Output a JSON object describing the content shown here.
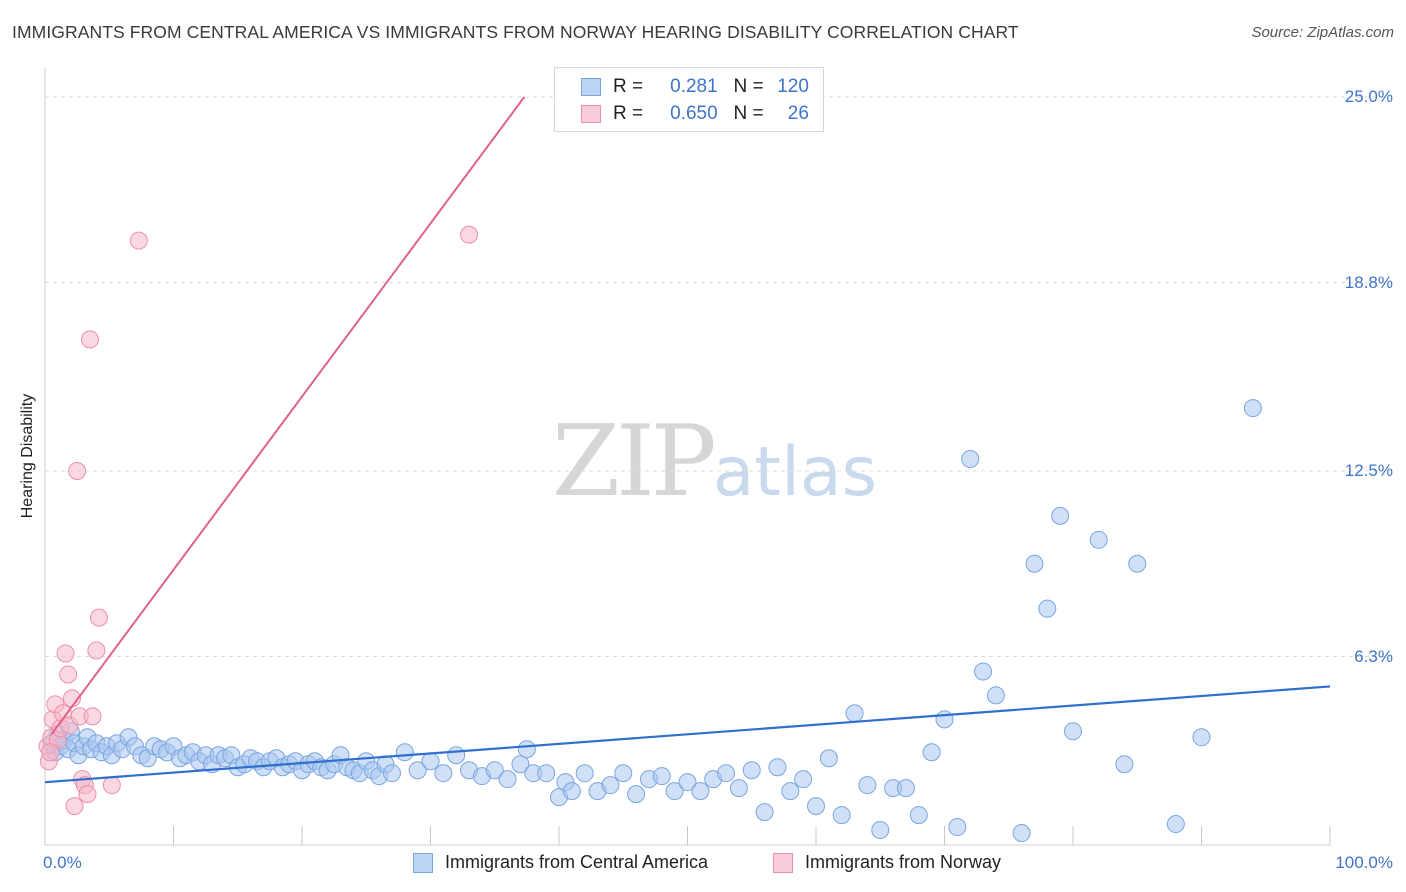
{
  "header": {
    "title": "IMMIGRANTS FROM CENTRAL AMERICA VS IMMIGRANTS FROM NORWAY HEARING DISABILITY CORRELATION CHART",
    "source": "Source: ZipAtlas.com"
  },
  "watermark": {
    "zip": "ZIP",
    "atlas": "atlas"
  },
  "legend": {
    "r_label": "R =",
    "n_label": "N =",
    "rows": [
      {
        "r": "0.281",
        "n": "120"
      },
      {
        "r": "0.650",
        "n": " 26"
      }
    ]
  },
  "colors": {
    "blue_fill": "#a9c7ef",
    "blue_stroke": "#7aa6e0",
    "blue_line": "#2e6fcf",
    "pink_fill": "#f6b8c9",
    "pink_stroke": "#ec8fab",
    "pink_line": "#e0628c",
    "grid": "#dcdcdc",
    "tick_text": "#3f74c8"
  },
  "chart_data": {
    "type": "scatter",
    "title": "IMMIGRANTS FROM CENTRAL AMERICA VS IMMIGRANTS FROM NORWAY HEARING DISABILITY CORRELATION CHART",
    "xlabel": "",
    "ylabel": "Hearing Disability",
    "xlim": [
      0,
      100
    ],
    "ylim": [
      0,
      25
    ],
    "x_tick_labels": [
      "0.0%",
      "100.0%"
    ],
    "y_ticks": [
      {
        "value": 6.3,
        "label": "6.3%"
      },
      {
        "value": 12.5,
        "label": "12.5%"
      },
      {
        "value": 18.8,
        "label": "18.8%"
      },
      {
        "value": 25.0,
        "label": "25.0%"
      }
    ],
    "grid": true,
    "series": [
      {
        "name": "Immigrants from Central America",
        "color": "#a9c7ef",
        "r": 0.281,
        "n": 120,
        "trend": {
          "x": [
            0,
            100
          ],
          "y": [
            2.1,
            5.3
          ]
        },
        "points": [
          [
            0.5,
            3.4
          ],
          [
            0.8,
            3.1
          ],
          [
            1.0,
            3.7
          ],
          [
            1.2,
            3.3
          ],
          [
            1.5,
            3.5
          ],
          [
            1.8,
            3.2
          ],
          [
            2.0,
            3.8
          ],
          [
            2.3,
            3.4
          ],
          [
            2.6,
            3.0
          ],
          [
            3.0,
            3.3
          ],
          [
            3.3,
            3.6
          ],
          [
            3.6,
            3.2
          ],
          [
            4.0,
            3.4
          ],
          [
            4.4,
            3.1
          ],
          [
            4.8,
            3.3
          ],
          [
            5.2,
            3.0
          ],
          [
            5.6,
            3.4
          ],
          [
            6.0,
            3.2
          ],
          [
            6.5,
            3.6
          ],
          [
            7.0,
            3.3
          ],
          [
            7.5,
            3.0
          ],
          [
            8.0,
            2.9
          ],
          [
            8.5,
            3.3
          ],
          [
            9.0,
            3.2
          ],
          [
            9.5,
            3.1
          ],
          [
            10.0,
            3.3
          ],
          [
            10.5,
            2.9
          ],
          [
            11.0,
            3.0
          ],
          [
            11.5,
            3.1
          ],
          [
            12.0,
            2.8
          ],
          [
            12.5,
            3.0
          ],
          [
            13.0,
            2.7
          ],
          [
            13.5,
            3.0
          ],
          [
            14.0,
            2.9
          ],
          [
            14.5,
            3.0
          ],
          [
            15.0,
            2.6
          ],
          [
            15.5,
            2.7
          ],
          [
            16.0,
            2.9
          ],
          [
            16.5,
            2.8
          ],
          [
            17.0,
            2.6
          ],
          [
            17.5,
            2.8
          ],
          [
            18.0,
            2.9
          ],
          [
            18.5,
            2.6
          ],
          [
            19.0,
            2.7
          ],
          [
            19.5,
            2.8
          ],
          [
            20.0,
            2.5
          ],
          [
            20.5,
            2.7
          ],
          [
            21.0,
            2.8
          ],
          [
            21.5,
            2.6
          ],
          [
            22.0,
            2.5
          ],
          [
            22.5,
            2.7
          ],
          [
            23.0,
            3.0
          ],
          [
            23.5,
            2.6
          ],
          [
            24.0,
            2.5
          ],
          [
            24.5,
            2.4
          ],
          [
            25.0,
            2.8
          ],
          [
            25.5,
            2.5
          ],
          [
            26.0,
            2.3
          ],
          [
            26.5,
            2.7
          ],
          [
            27.0,
            2.4
          ],
          [
            28.0,
            3.1
          ],
          [
            29.0,
            2.5
          ],
          [
            30.0,
            2.8
          ],
          [
            31.0,
            2.4
          ],
          [
            32.0,
            3.0
          ],
          [
            33.0,
            2.5
          ],
          [
            34.0,
            2.3
          ],
          [
            35.0,
            2.5
          ],
          [
            36.0,
            2.2
          ],
          [
            37.0,
            2.7
          ],
          [
            37.5,
            3.2
          ],
          [
            38.0,
            2.4
          ],
          [
            39.0,
            2.4
          ],
          [
            40.0,
            1.6
          ],
          [
            40.5,
            2.1
          ],
          [
            41.0,
            1.8
          ],
          [
            42.0,
            2.4
          ],
          [
            43.0,
            1.8
          ],
          [
            44.0,
            2.0
          ],
          [
            45.0,
            2.4
          ],
          [
            46.0,
            1.7
          ],
          [
            47.0,
            2.2
          ],
          [
            48.0,
            2.3
          ],
          [
            49.0,
            1.8
          ],
          [
            50.0,
            2.1
          ],
          [
            51.0,
            1.8
          ],
          [
            52.0,
            2.2
          ],
          [
            53.0,
            2.4
          ],
          [
            54.0,
            1.9
          ],
          [
            55.0,
            2.5
          ],
          [
            56.0,
            1.1
          ],
          [
            57.0,
            2.6
          ],
          [
            58.0,
            1.8
          ],
          [
            59.0,
            2.2
          ],
          [
            60.0,
            1.3
          ],
          [
            61.0,
            2.9
          ],
          [
            62.0,
            1.0
          ],
          [
            63.0,
            4.4
          ],
          [
            64.0,
            2.0
          ],
          [
            65.0,
            0.5
          ],
          [
            66.0,
            1.9
          ],
          [
            67.0,
            1.9
          ],
          [
            68.0,
            1.0
          ],
          [
            69.0,
            3.1
          ],
          [
            70.0,
            4.2
          ],
          [
            71.0,
            0.6
          ],
          [
            72.0,
            12.9
          ],
          [
            73.0,
            5.8
          ],
          [
            74.0,
            5.0
          ],
          [
            76.0,
            0.4
          ],
          [
            77.0,
            9.4
          ],
          [
            78.0,
            7.9
          ],
          [
            79.0,
            11.0
          ],
          [
            80.0,
            3.8
          ],
          [
            82.0,
            10.2
          ],
          [
            84.0,
            2.7
          ],
          [
            85.0,
            9.4
          ],
          [
            88.0,
            0.7
          ],
          [
            90.0,
            3.6
          ],
          [
            94.0,
            14.6
          ]
        ]
      },
      {
        "name": "Immigrants from Norway",
        "color": "#f6b8c9",
        "r": 0.65,
        "n": 26,
        "trend": {
          "x": [
            0.5,
            37.3
          ],
          "y": [
            3.7,
            25.0
          ]
        },
        "points": [
          [
            0.2,
            3.3
          ],
          [
            0.3,
            2.8
          ],
          [
            0.5,
            3.6
          ],
          [
            0.6,
            4.2
          ],
          [
            0.8,
            4.7
          ],
          [
            1.0,
            3.5
          ],
          [
            1.2,
            3.9
          ],
          [
            1.4,
            4.4
          ],
          [
            1.6,
            6.4
          ],
          [
            1.8,
            5.7
          ],
          [
            1.9,
            4.0
          ],
          [
            2.1,
            4.9
          ],
          [
            2.3,
            1.3
          ],
          [
            2.5,
            12.5
          ],
          [
            2.7,
            4.3
          ],
          [
            2.9,
            2.2
          ],
          [
            3.1,
            2.0
          ],
          [
            3.3,
            1.7
          ],
          [
            3.5,
            16.9
          ],
          [
            3.7,
            4.3
          ],
          [
            4.0,
            6.5
          ],
          [
            4.2,
            7.6
          ],
          [
            5.2,
            2.0
          ],
          [
            7.3,
            20.2
          ],
          [
            33.0,
            20.4
          ],
          [
            0.4,
            3.1
          ]
        ]
      }
    ]
  }
}
